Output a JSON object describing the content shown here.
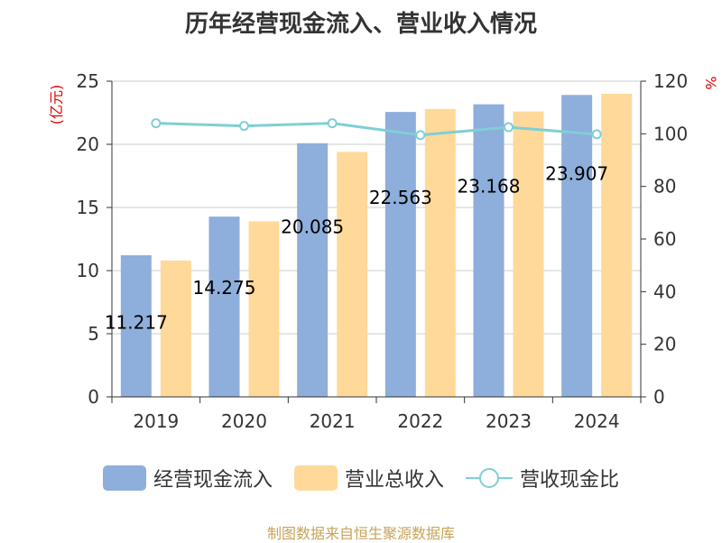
{
  "chart_data": {
    "type": "bar",
    "title": "历年经营现金流入、营业收入情况",
    "categories": [
      "2019",
      "2020",
      "2021",
      "2022",
      "2023",
      "2024"
    ],
    "series": [
      {
        "name": "经营现金流入",
        "type": "bar",
        "axis": "left",
        "color": "#8eaedb",
        "values": [
          11.217,
          14.275,
          20.085,
          22.563,
          23.168,
          23.907
        ],
        "labels": [
          "11.217",
          "14.275",
          "20.085",
          "22.563",
          "23.168",
          "23.907"
        ]
      },
      {
        "name": "营业总收入",
        "type": "bar",
        "axis": "left",
        "color": "#ffd999",
        "values": [
          10.8,
          13.9,
          19.4,
          22.8,
          22.6,
          24.0
        ]
      },
      {
        "name": "营收现金比",
        "type": "line",
        "axis": "right",
        "color": "#7fcfd4",
        "values": [
          104,
          103,
          104,
          99.5,
          102.5,
          99.8
        ]
      }
    ],
    "y_left": {
      "label": "(亿元)",
      "min": 0,
      "max": 25,
      "ticks": [
        0,
        5,
        10,
        15,
        20,
        25
      ]
    },
    "y_right": {
      "label": "%",
      "min": 0,
      "max": 120,
      "ticks": [
        0,
        20,
        40,
        60,
        80,
        100,
        120
      ]
    },
    "grid": true,
    "legend_position": "bottom"
  },
  "source": "制图数据来自恒生聚源数据库"
}
